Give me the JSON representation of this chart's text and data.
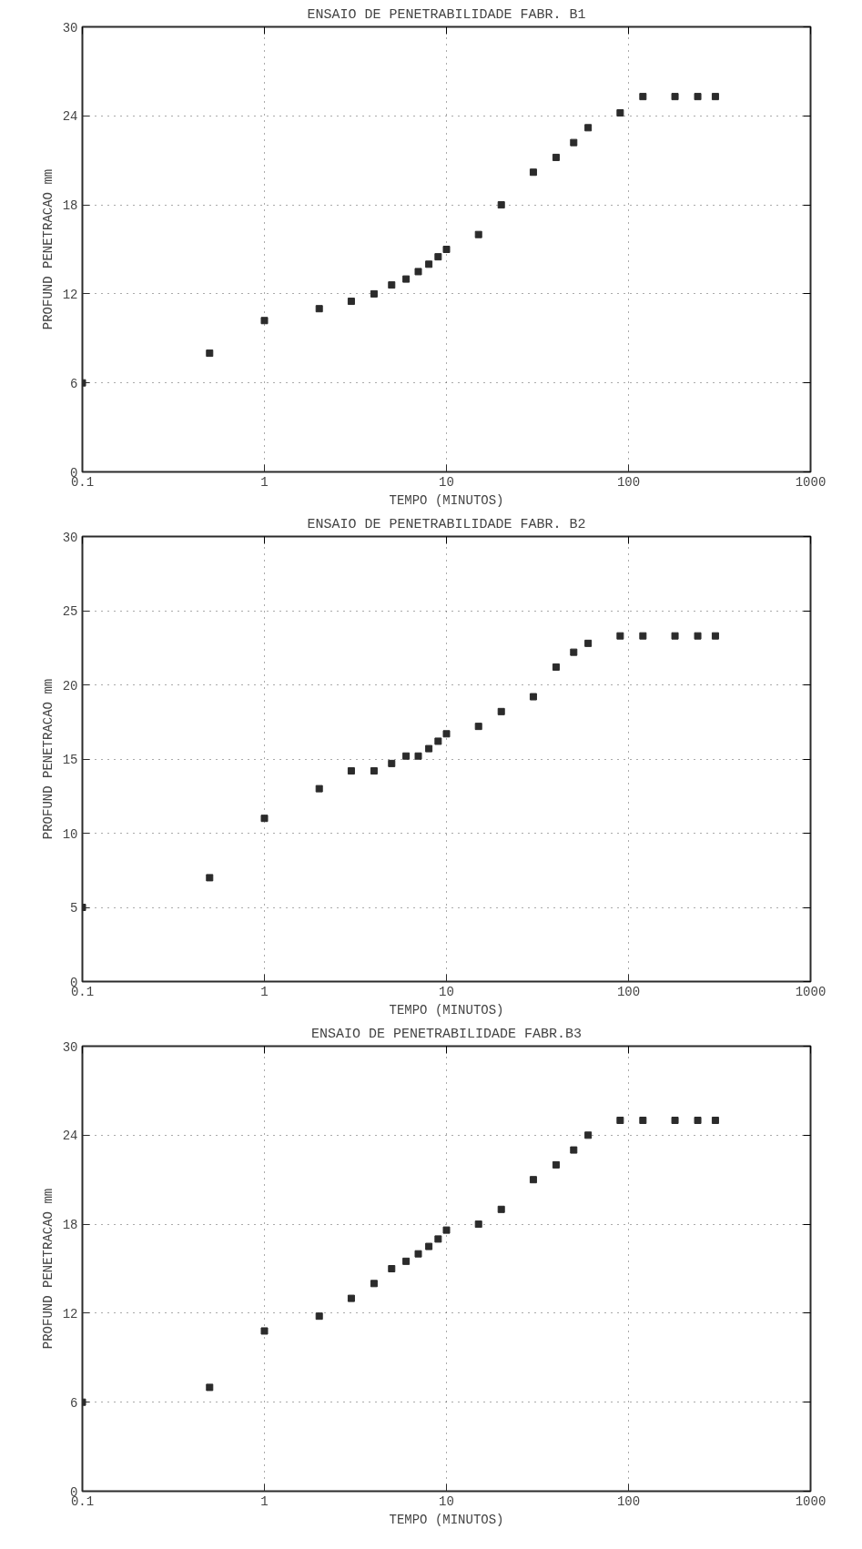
{
  "chart_data": [
    {
      "type": "scatter",
      "title": "ENSAIO DE PENETRABILIDADE FABR. B1",
      "xlabel": "TEMPO (MINUTOS)",
      "ylabel": "PROFUND PENETRACAO mm",
      "log": "x",
      "grid": true,
      "marker": "square",
      "xlim": [
        0.1,
        1000
      ],
      "ylim": [
        0,
        30
      ],
      "xticks": [
        0.1,
        1,
        10,
        100,
        1000
      ],
      "yticks": [
        0,
        6,
        12,
        18,
        24,
        30
      ],
      "x": [
        0.1,
        0.5,
        1,
        2,
        3,
        4,
        5,
        6,
        7,
        8,
        9,
        10,
        15,
        20,
        30,
        40,
        50,
        60,
        90,
        120,
        180,
        240,
        300
      ],
      "series": [
        {
          "color": "#2b2b2b",
          "values": [
            6,
            8,
            10.2,
            11,
            11.5,
            12,
            12.6,
            13,
            13.5,
            14,
            14.5,
            15,
            16,
            18,
            20.2,
            21.2,
            22.2,
            23.2,
            24.2,
            25.3,
            25.3,
            25.3,
            25.3
          ]
        }
      ]
    },
    {
      "type": "scatter",
      "title": "ENSAIO DE PENETRABILIDADE FABR. B2",
      "xlabel": "TEMPO (MINUTOS)",
      "ylabel": "PROFUND PENETRACAO mm",
      "log": "x",
      "grid": true,
      "marker": "square",
      "xlim": [
        0.1,
        1000
      ],
      "ylim": [
        0,
        30
      ],
      "xticks": [
        0.1,
        1,
        10,
        100,
        1000
      ],
      "yticks": [
        0,
        5,
        10,
        15,
        20,
        25,
        30
      ],
      "x": [
        0.1,
        0.5,
        1,
        2,
        3,
        4,
        5,
        6,
        7,
        8,
        9,
        10,
        15,
        20,
        30,
        40,
        50,
        60,
        90,
        120,
        180,
        240,
        300
      ],
      "series": [
        {
          "color": "#2b2b2b",
          "values": [
            5,
            7,
            11,
            13,
            14.2,
            14.2,
            14.7,
            15.2,
            15.2,
            15.7,
            16.2,
            16.7,
            17.2,
            18.2,
            19.2,
            21.2,
            22.2,
            22.8,
            23.3,
            23.3,
            23.3,
            23.3,
            23.3
          ]
        }
      ]
    },
    {
      "type": "scatter",
      "title": "ENSAIO DE PENETRABILIDADE FABR.B3",
      "xlabel": "TEMPO (MINUTOS)",
      "ylabel": "PROFUND PENETRACAO mm",
      "log": "x",
      "grid": true,
      "marker": "square",
      "xlim": [
        0.1,
        1000
      ],
      "ylim": [
        0,
        30
      ],
      "xticks": [
        0.1,
        1,
        10,
        100,
        1000
      ],
      "yticks": [
        0,
        6,
        12,
        18,
        24,
        30
      ],
      "x": [
        0.1,
        0.5,
        1,
        2,
        3,
        4,
        5,
        6,
        7,
        8,
        9,
        10,
        15,
        20,
        30,
        40,
        50,
        60,
        90,
        120,
        180,
        240,
        300
      ],
      "series": [
        {
          "color": "#2b2b2b",
          "values": [
            6,
            7,
            10.8,
            11.8,
            13,
            14,
            15,
            15.5,
            16,
            16.5,
            17,
            17.6,
            18,
            19,
            21,
            22,
            23,
            24,
            25,
            25,
            25,
            25,
            25
          ]
        }
      ]
    }
  ]
}
